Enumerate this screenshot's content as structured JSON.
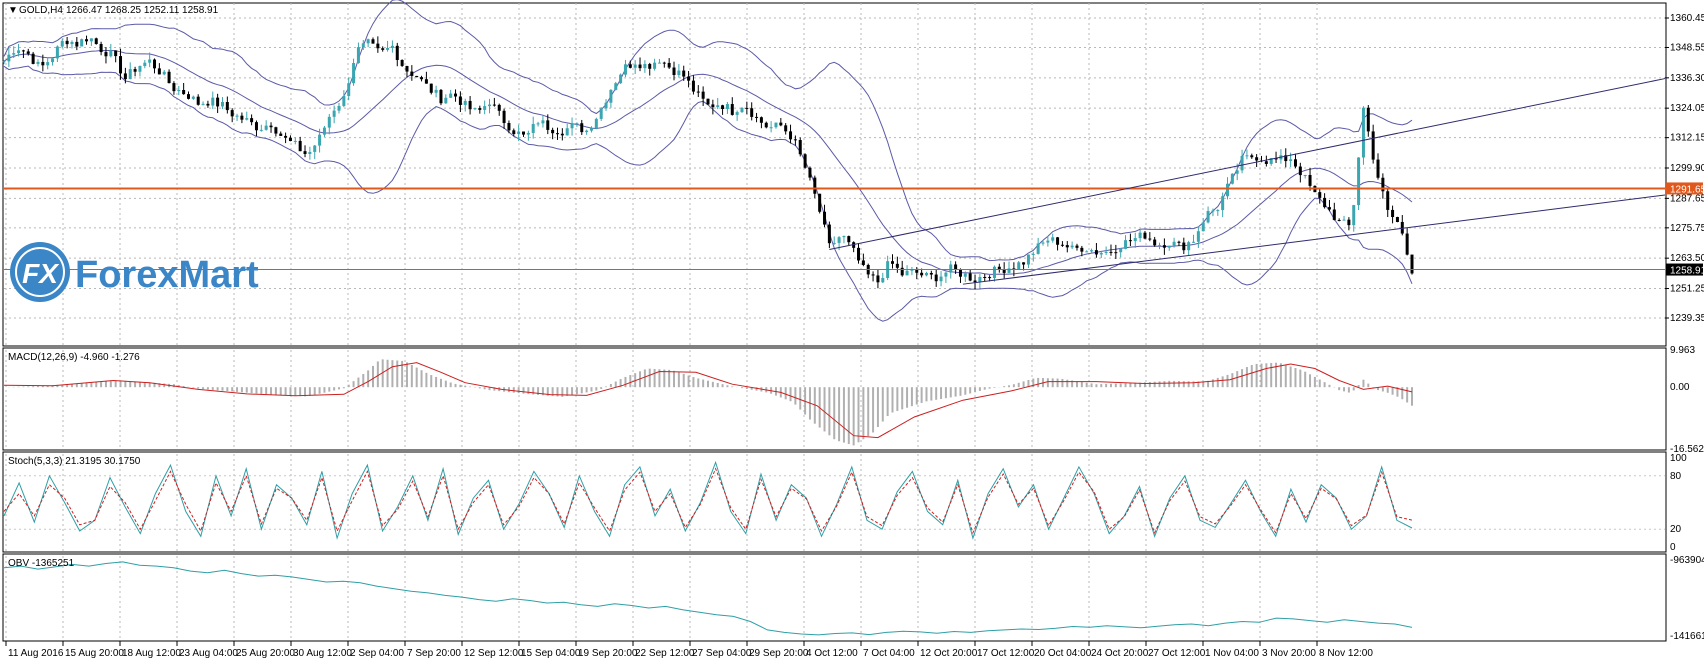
{
  "header": {
    "symbol": "GOLD,H4",
    "ohlc": "1266.47 1268.25 1252.11 1258.91"
  },
  "colors": {
    "candle_up": "#3aa6b0",
    "candle_down": "#000000",
    "bollinger": "#5b5aa8",
    "resistance": "#e0581c",
    "channel": "#2f2a6e",
    "macd_hist": "#b0b0b0",
    "macd_signal": "#cc1f1f",
    "stoch_main": "#2f9fa6",
    "stoch_signal": "#cc2020",
    "obv": "#2f9fa6",
    "logo": "#3a86c6"
  },
  "logo": {
    "text": "ForexMart",
    "icon_text": "FX"
  },
  "chart_data": [
    {
      "type": "candlestick",
      "title": "GOLD,H4",
      "ylim": [
        1239.35,
        1360.45
      ],
      "y_ticks": [
        "1360.45",
        "1348.55",
        "1336.30",
        "1324.05",
        "1312.15",
        "1299.90",
        "1287.65",
        "1275.75",
        "1263.50",
        "1251.25",
        "1239.35"
      ],
      "x_ticks": [
        "11 Aug 2016",
        "15 Aug 20:00",
        "18 Aug 12:00",
        "23 Aug 04:00",
        "25 Aug 20:00",
        "30 Aug 12:00",
        "2 Sep 04:00",
        "7 Sep 20:00",
        "12 Sep 12:00",
        "15 Sep 04:00",
        "19 Sep 20:00",
        "22 Sep 12:00",
        "27 Sep 04:00",
        "29 Sep 20:00",
        "4 Oct 12:00",
        "7 Oct 04:00",
        "12 Oct 20:00",
        "17 Oct 12:00",
        "20 Oct 04:00",
        "24 Oct 20:00",
        "27 Oct 12:00",
        "1 Nov 04:00",
        "3 Nov 20:00",
        "8 Nov 12:00"
      ],
      "last_price": "1258.91",
      "horizontal_level": {
        "value": 1291.65,
        "label": "1291.65"
      },
      "close_path": [
        [
          0,
          1343
        ],
        [
          10,
          1349
        ],
        [
          20,
          1346
        ],
        [
          30,
          1340
        ],
        [
          40,
          1345
        ],
        [
          50,
          1352
        ],
        [
          60,
          1350
        ],
        [
          70,
          1353
        ],
        [
          80,
          1348
        ],
        [
          90,
          1345
        ],
        [
          100,
          1336
        ],
        [
          110,
          1341
        ],
        [
          120,
          1343
        ],
        [
          130,
          1338
        ],
        [
          140,
          1332
        ],
        [
          150,
          1330
        ],
        [
          160,
          1326
        ],
        [
          170,
          1327
        ],
        [
          180,
          1325
        ],
        [
          190,
          1321
        ],
        [
          200,
          1319
        ],
        [
          210,
          1316
        ],
        [
          220,
          1318
        ],
        [
          230,
          1312
        ],
        [
          240,
          1309
        ],
        [
          250,
          1305
        ],
        [
          260,
          1312
        ],
        [
          270,
          1323
        ],
        [
          280,
          1328
        ],
        [
          290,
          1347
        ],
        [
          300,
          1350
        ],
        [
          310,
          1346
        ],
        [
          320,
          1349
        ],
        [
          330,
          1340
        ],
        [
          340,
          1337
        ],
        [
          350,
          1332
        ],
        [
          360,
          1328
        ],
        [
          370,
          1330
        ],
        [
          380,
          1325
        ],
        [
          390,
          1322
        ],
        [
          400,
          1327
        ],
        [
          410,
          1320
        ],
        [
          420,
          1315
        ],
        [
          430,
          1312
        ],
        [
          440,
          1319
        ],
        [
          450,
          1316
        ],
        [
          460,
          1315
        ],
        [
          470,
          1317
        ],
        [
          480,
          1315
        ],
        [
          490,
          1322
        ],
        [
          500,
          1332
        ],
        [
          510,
          1340
        ],
        [
          520,
          1343
        ],
        [
          530,
          1341
        ],
        [
          540,
          1344
        ],
        [
          550,
          1340
        ],
        [
          560,
          1337
        ],
        [
          570,
          1330
        ],
        [
          580,
          1325
        ],
        [
          590,
          1326
        ],
        [
          600,
          1323
        ],
        [
          610,
          1326
        ],
        [
          620,
          1320
        ],
        [
          630,
          1316
        ],
        [
          640,
          1317
        ],
        [
          650,
          1312
        ],
        [
          660,
          1300
        ],
        [
          670,
          1286
        ],
        [
          680,
          1268
        ],
        [
          690,
          1273
        ],
        [
          700,
          1266
        ],
        [
          710,
          1257
        ],
        [
          720,
          1254
        ],
        [
          730,
          1262
        ],
        [
          740,
          1257
        ],
        [
          750,
          1258
        ],
        [
          760,
          1256
        ],
        [
          770,
          1256
        ],
        [
          780,
          1259
        ],
        [
          790,
          1257
        ],
        [
          800,
          1255
        ],
        [
          810,
          1257
        ],
        [
          820,
          1259
        ],
        [
          830,
          1260
        ],
        [
          840,
          1262
        ],
        [
          850,
          1267
        ],
        [
          860,
          1271
        ],
        [
          870,
          1270
        ],
        [
          880,
          1267
        ],
        [
          890,
          1268
        ],
        [
          900,
          1266
        ],
        [
          910,
          1266
        ],
        [
          920,
          1269
        ],
        [
          930,
          1271
        ],
        [
          940,
          1273
        ],
        [
          950,
          1269
        ],
        [
          960,
          1270
        ],
        [
          970,
          1268
        ],
        [
          980,
          1271
        ],
        [
          990,
          1281
        ],
        [
          1000,
          1284
        ],
        [
          1010,
          1294
        ],
        [
          1020,
          1303
        ],
        [
          1030,
          1305
        ],
        [
          1040,
          1303
        ],
        [
          1050,
          1303
        ],
        [
          1060,
          1304
        ],
        [
          1070,
          1297
        ],
        [
          1080,
          1289
        ],
        [
          1090,
          1284
        ],
        [
          1100,
          1278
        ],
        [
          1110,
          1276
        ],
        [
          1120,
          1324
        ],
        [
          1130,
          1300
        ],
        [
          1140,
          1282
        ],
        [
          1150,
          1277
        ],
        [
          1155,
          1267
        ],
        [
          1160,
          1259
        ]
      ]
    },
    {
      "type": "histogram",
      "title": "MACD(12,26,9) -4.960 -1.276",
      "ylim": [
        -16.562,
        9.963
      ],
      "y_ticks": [
        "9.963",
        "0.00",
        "-16.562"
      ],
      "hist_path": [
        [
          0,
          0
        ],
        [
          30,
          0.3
        ],
        [
          60,
          1.0
        ],
        [
          90,
          1.8
        ],
        [
          110,
          1.5
        ],
        [
          140,
          0.8
        ],
        [
          160,
          -0.4
        ],
        [
          190,
          -1.2
        ],
        [
          220,
          -2.0
        ],
        [
          250,
          -2.5
        ],
        [
          280,
          -0.3
        ],
        [
          300,
          4.5
        ],
        [
          310,
          7.5
        ],
        [
          330,
          7.0
        ],
        [
          350,
          3.5
        ],
        [
          370,
          1.0
        ],
        [
          400,
          -0.8
        ],
        [
          430,
          -1.8
        ],
        [
          460,
          -2.6
        ],
        [
          490,
          -0.8
        ],
        [
          510,
          2.5
        ],
        [
          530,
          5.0
        ],
        [
          550,
          4.6
        ],
        [
          570,
          2.5
        ],
        [
          600,
          0.2
        ],
        [
          630,
          -1.5
        ],
        [
          650,
          -4.0
        ],
        [
          665,
          -9.0
        ],
        [
          685,
          -14.2
        ],
        [
          700,
          -15.6
        ],
        [
          715,
          -12.5
        ],
        [
          730,
          -7.0
        ],
        [
          760,
          -3.8
        ],
        [
          790,
          -2.2
        ],
        [
          810,
          -0.5
        ],
        [
          830,
          0.6
        ],
        [
          850,
          2.5
        ],
        [
          870,
          2.3
        ],
        [
          900,
          0.8
        ],
        [
          930,
          1.1
        ],
        [
          960,
          1.7
        ],
        [
          990,
          1.5
        ],
        [
          1010,
          3.5
        ],
        [
          1030,
          6.2
        ],
        [
          1050,
          6.6
        ],
        [
          1070,
          4.5
        ],
        [
          1090,
          1.0
        ],
        [
          1100,
          -0.8
        ],
        [
          1110,
          -1.6
        ],
        [
          1120,
          2.0
        ],
        [
          1130,
          -0.6
        ],
        [
          1140,
          -1.5
        ],
        [
          1150,
          -2.8
        ],
        [
          1160,
          -4.96
        ]
      ],
      "signal_path": [
        [
          0,
          0.5
        ],
        [
          40,
          0.4
        ],
        [
          90,
          1.8
        ],
        [
          120,
          1.2
        ],
        [
          160,
          -0.6
        ],
        [
          200,
          -1.8
        ],
        [
          240,
          -2.3
        ],
        [
          280,
          -1.9
        ],
        [
          300,
          1.5
        ],
        [
          320,
          5.5
        ],
        [
          340,
          6.6
        ],
        [
          360,
          4.0
        ],
        [
          380,
          1.2
        ],
        [
          410,
          -0.6
        ],
        [
          450,
          -2.0
        ],
        [
          480,
          -2.2
        ],
        [
          510,
          0.5
        ],
        [
          540,
          4.2
        ],
        [
          570,
          4.0
        ],
        [
          600,
          0.8
        ],
        [
          640,
          -1.4
        ],
        [
          670,
          -5.0
        ],
        [
          700,
          -13.0
        ],
        [
          720,
          -13.5
        ],
        [
          750,
          -8.0
        ],
        [
          790,
          -3.5
        ],
        [
          830,
          -1.0
        ],
        [
          860,
          1.5
        ],
        [
          900,
          1.5
        ],
        [
          940,
          1.0
        ],
        [
          980,
          1.2
        ],
        [
          1010,
          2.0
        ],
        [
          1040,
          5.0
        ],
        [
          1060,
          6.2
        ],
        [
          1080,
          5.0
        ],
        [
          1100,
          1.8
        ],
        [
          1120,
          -0.6
        ],
        [
          1140,
          0.3
        ],
        [
          1160,
          -1.276
        ]
      ]
    },
    {
      "type": "line",
      "title": "Stoch(5,3,3) 21.3195 30.1750",
      "ylim": [
        0,
        100
      ],
      "y_ticks": [
        "100",
        "80",
        "20",
        "0"
      ],
      "series": [
        {
          "name": "main",
          "values": [
            35,
            72,
            28,
            80,
            50,
            18,
            30,
            78,
            45,
            15,
            60,
            92,
            40,
            12,
            80,
            35,
            88,
            20,
            70,
            55,
            25,
            85,
            10,
            60,
            92,
            18,
            45,
            80,
            30,
            88,
            14,
            55,
            75,
            20,
            48,
            85,
            60,
            22,
            80,
            40,
            12,
            70,
            90,
            35,
            65,
            18,
            50,
            95,
            40,
            15,
            82,
            30,
            70,
            55,
            12,
            48,
            90,
            30,
            20,
            62,
            85,
            40,
            25,
            75,
            10,
            60,
            88,
            45,
            70,
            20,
            55,
            90,
            60,
            15,
            35,
            68,
            12,
            55,
            80,
            30,
            22,
            48,
            75,
            40,
            12,
            65,
            28,
            70,
            55,
            20,
            35,
            90,
            30,
            21.3
          ]
        },
        {
          "name": "signal",
          "values": [
            40,
            60,
            35,
            70,
            55,
            25,
            30,
            68,
            50,
            20,
            52,
            85,
            48,
            18,
            72,
            40,
            80,
            26,
            66,
            55,
            30,
            78,
            18,
            52,
            85,
            24,
            42,
            74,
            34,
            80,
            20,
            50,
            70,
            25,
            45,
            78,
            60,
            26,
            72,
            44,
            18,
            64,
            84,
            40,
            60,
            22,
            48,
            88,
            44,
            20,
            76,
            34,
            66,
            54,
            18,
            46,
            84,
            34,
            24,
            58,
            78,
            44,
            28,
            70,
            16,
            56,
            82,
            48,
            66,
            24,
            52,
            84,
            62,
            20,
            34,
            64,
            16,
            52,
            74,
            34,
            26,
            46,
            70,
            42,
            16,
            60,
            32,
            66,
            54,
            24,
            36,
            84,
            34,
            30.2
          ]
        }
      ]
    },
    {
      "type": "line",
      "title": "OBV -1365251",
      "ylim": [
        -1416618,
        -963904
      ],
      "y_ticks": [
        "-963904",
        "-1416618"
      ],
      "values": [
        -1010000,
        -1000000,
        -1018000,
        -1005000,
        -990000,
        -1000000,
        -985000,
        -975000,
        -995000,
        -1000000,
        -1010000,
        -1030000,
        -1040000,
        -1025000,
        -1045000,
        -1060000,
        -1055000,
        -1065000,
        -1080000,
        -1095000,
        -1090000,
        -1100000,
        -1120000,
        -1135000,
        -1150000,
        -1160000,
        -1175000,
        -1185000,
        -1200000,
        -1210000,
        -1195000,
        -1205000,
        -1220000,
        -1215000,
        -1230000,
        -1240000,
        -1225000,
        -1235000,
        -1250000,
        -1240000,
        -1260000,
        -1275000,
        -1290000,
        -1300000,
        -1330000,
        -1380000,
        -1395000,
        -1405000,
        -1410000,
        -1402000,
        -1398000,
        -1408000,
        -1395000,
        -1388000,
        -1392000,
        -1400000,
        -1390000,
        -1395000,
        -1385000,
        -1380000,
        -1375000,
        -1378000,
        -1370000,
        -1360000,
        -1365000,
        -1355000,
        -1362000,
        -1368000,
        -1358000,
        -1350000,
        -1345000,
        -1355000,
        -1340000,
        -1330000,
        -1335000,
        -1310000,
        -1315000,
        -1325000,
        -1335000,
        -1320000,
        -1330000,
        -1340000,
        -1345000,
        -1365251
      ]
    }
  ]
}
